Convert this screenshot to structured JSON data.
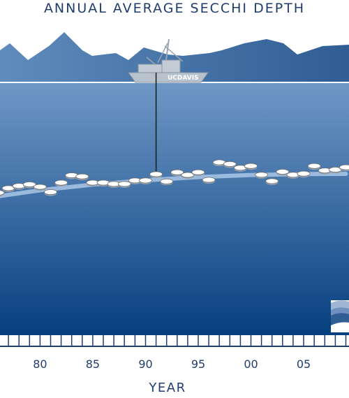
{
  "chart_data": {
    "type": "scatter",
    "title": "ANNUAL AVERAGE SECCHI DEPTH",
    "xlabel": "YEAR",
    "ylabel": "",
    "x_ticks": [
      {
        "year": 1980,
        "label": "80"
      },
      {
        "year": 1985,
        "label": "85"
      },
      {
        "year": 1990,
        "label": "90"
      },
      {
        "year": 1995,
        "label": "95"
      },
      {
        "year": 2000,
        "label": "00"
      },
      {
        "year": 2005,
        "label": "05"
      }
    ],
    "xlim": [
      1976.2,
      2009.3
    ],
    "ylim": [
      0,
      1
    ],
    "y_orientation": "disk depth increases downward (water surface at top)",
    "points": [
      {
        "x": 1976,
        "y": 0.383
      },
      {
        "x": 1977,
        "y": 0.328
      },
      {
        "x": 1978,
        "y": 0.302
      },
      {
        "x": 1979,
        "y": 0.284
      },
      {
        "x": 1980,
        "y": 0.313
      },
      {
        "x": 1981,
        "y": 0.376
      },
      {
        "x": 1982,
        "y": 0.263
      },
      {
        "x": 1983,
        "y": 0.176
      },
      {
        "x": 1984,
        "y": 0.189
      },
      {
        "x": 1985,
        "y": 0.263
      },
      {
        "x": 1986,
        "y": 0.263
      },
      {
        "x": 1987,
        "y": 0.278
      },
      {
        "x": 1988,
        "y": 0.278
      },
      {
        "x": 1989,
        "y": 0.237
      },
      {
        "x": 1990,
        "y": 0.237
      },
      {
        "x": 1991,
        "y": 0.162
      },
      {
        "x": 1992,
        "y": 0.248
      },
      {
        "x": 1993,
        "y": 0.139
      },
      {
        "x": 1994,
        "y": 0.172
      },
      {
        "x": 1995,
        "y": 0.139
      },
      {
        "x": 1996,
        "y": 0.23
      },
      {
        "x": 1997,
        "y": 0.021
      },
      {
        "x": 1998,
        "y": 0.041
      },
      {
        "x": 1999,
        "y": 0.086
      },
      {
        "x": 2000,
        "y": 0.064
      },
      {
        "x": 2001,
        "y": 0.169
      },
      {
        "x": 2002,
        "y": 0.245
      },
      {
        "x": 2003,
        "y": 0.133
      },
      {
        "x": 2004,
        "y": 0.169
      },
      {
        "x": 2005,
        "y": 0.156
      },
      {
        "x": 2006,
        "y": 0.064
      },
      {
        "x": 2007,
        "y": 0.118
      },
      {
        "x": 2008,
        "y": 0.108
      },
      {
        "x": 2009,
        "y": 0.08
      }
    ],
    "trend": {
      "x": [
        1976,
        1980,
        1985,
        1990,
        1995,
        2000,
        2005,
        2009
      ],
      "y": [
        0.376,
        0.304,
        0.237,
        0.185,
        0.147,
        0.122,
        0.11,
        0.108
      ]
    },
    "highlighted_year": 1991,
    "boat_label": "UCDAVIS",
    "colors": {
      "title": "#1f3d6e",
      "mountains_light": "#5f8cbc",
      "mountains_dark": "#2f5d94",
      "water_top": "#6f98c6",
      "water_bottom": "#063f7e",
      "trend": "#a9c6e6",
      "disk_fill": "#ffffff",
      "disk_stroke": "#6b6b6b",
      "axis": "#1f3d6e"
    },
    "grid": false,
    "legend": "none"
  }
}
